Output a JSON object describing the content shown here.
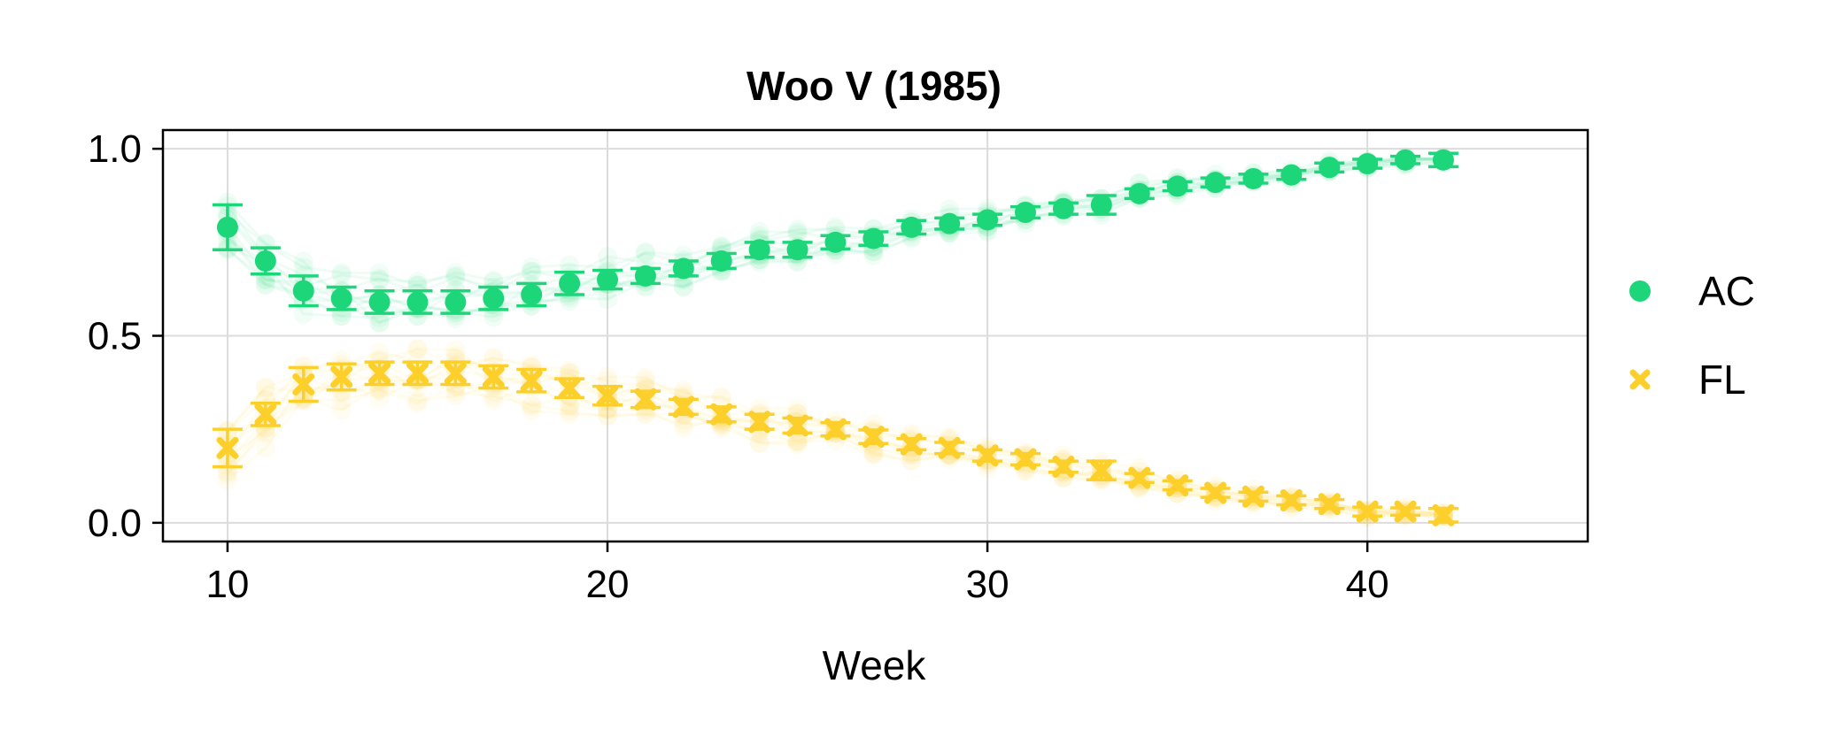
{
  "chart_data": {
    "type": "scatter",
    "title": "Woo V (1985)",
    "xlabel": "Week",
    "ylabel": "",
    "xlim": [
      8.3,
      45.8
    ],
    "ylim": [
      -0.05,
      1.05
    ],
    "xticks": [
      10,
      20,
      30,
      40
    ],
    "yticks": [
      0.0,
      0.5,
      1.0
    ],
    "ytick_labels": [
      "0.0",
      "0.5",
      "1.0"
    ],
    "grid": true,
    "legend_position": "right",
    "series": [
      {
        "name": "AC",
        "marker": "circle",
        "color": "#1ed67a",
        "x": [
          10,
          11,
          12,
          13,
          14,
          15,
          16,
          17,
          18,
          19,
          20,
          21,
          22,
          23,
          24,
          25,
          26,
          27,
          28,
          29,
          30,
          31,
          32,
          33,
          34,
          35,
          36,
          37,
          38,
          39,
          40,
          41,
          42
        ],
        "y": [
          0.79,
          0.7,
          0.62,
          0.6,
          0.59,
          0.59,
          0.59,
          0.6,
          0.61,
          0.64,
          0.65,
          0.66,
          0.68,
          0.7,
          0.73,
          0.73,
          0.75,
          0.76,
          0.79,
          0.8,
          0.81,
          0.83,
          0.84,
          0.85,
          0.88,
          0.9,
          0.91,
          0.92,
          0.93,
          0.95,
          0.96,
          0.97,
          0.97
        ],
        "err": [
          0.06,
          0.035,
          0.04,
          0.03,
          0.03,
          0.03,
          0.03,
          0.03,
          0.03,
          0.03,
          0.025,
          0.02,
          0.02,
          0.02,
          0.02,
          0.02,
          0.018,
          0.018,
          0.018,
          0.015,
          0.015,
          0.015,
          0.015,
          0.025,
          0.013,
          0.012,
          0.012,
          0.012,
          0.012,
          0.012,
          0.012,
          0.01,
          0.018
        ]
      },
      {
        "name": "FL",
        "marker": "x",
        "color": "#fccf2a",
        "x": [
          10,
          11,
          12,
          13,
          14,
          15,
          16,
          17,
          18,
          19,
          20,
          21,
          22,
          23,
          24,
          25,
          26,
          27,
          28,
          29,
          30,
          31,
          32,
          33,
          34,
          35,
          36,
          37,
          38,
          39,
          40,
          41,
          42
        ],
        "y": [
          0.2,
          0.29,
          0.37,
          0.39,
          0.4,
          0.4,
          0.4,
          0.39,
          0.38,
          0.36,
          0.34,
          0.33,
          0.31,
          0.29,
          0.27,
          0.26,
          0.25,
          0.23,
          0.21,
          0.2,
          0.18,
          0.17,
          0.15,
          0.14,
          0.12,
          0.1,
          0.08,
          0.07,
          0.06,
          0.05,
          0.03,
          0.03,
          0.02
        ],
        "err": [
          0.05,
          0.03,
          0.045,
          0.035,
          0.03,
          0.03,
          0.03,
          0.03,
          0.03,
          0.025,
          0.025,
          0.022,
          0.02,
          0.02,
          0.02,
          0.02,
          0.018,
          0.018,
          0.015,
          0.015,
          0.015,
          0.015,
          0.015,
          0.025,
          0.012,
          0.012,
          0.012,
          0.012,
          0.012,
          0.012,
          0.012,
          0.01,
          0.018
        ]
      }
    ]
  }
}
